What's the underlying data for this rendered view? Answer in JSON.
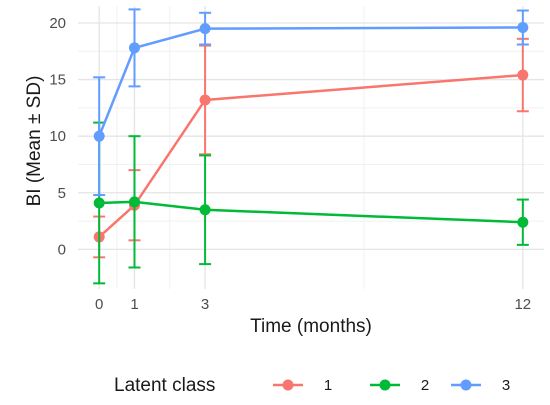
{
  "chart_data": {
    "type": "line",
    "xlabel": "Time (months)",
    "ylabel": "BI (Mean ± SD)",
    "x": [
      0,
      1,
      3,
      12
    ],
    "x_ticks": [
      "0",
      "1",
      "3",
      "12"
    ],
    "y_ticks": [
      "0",
      "5",
      "10",
      "15",
      "20"
    ],
    "xlim": [
      -0.6,
      12.6
    ],
    "ylim": [
      -3.5,
      21.5
    ],
    "grid": true,
    "error_bars": "SD",
    "legend_title": "Latent class",
    "legend_position": "bottom",
    "series": [
      {
        "name": "1",
        "color": "#F8766D",
        "values": [
          1.1,
          3.9,
          13.2,
          15.4
        ],
        "sd": [
          1.8,
          3.1,
          4.8,
          3.2
        ]
      },
      {
        "name": "2",
        "color": "#00BA38",
        "values": [
          4.1,
          4.2,
          3.5,
          2.4
        ],
        "sd": [
          7.1,
          5.8,
          4.8,
          2.0
        ]
      },
      {
        "name": "3",
        "color": "#619CFF",
        "values": [
          10.0,
          17.8,
          19.5,
          19.6
        ],
        "sd": [
          5.2,
          3.4,
          1.4,
          1.5
        ]
      }
    ]
  }
}
